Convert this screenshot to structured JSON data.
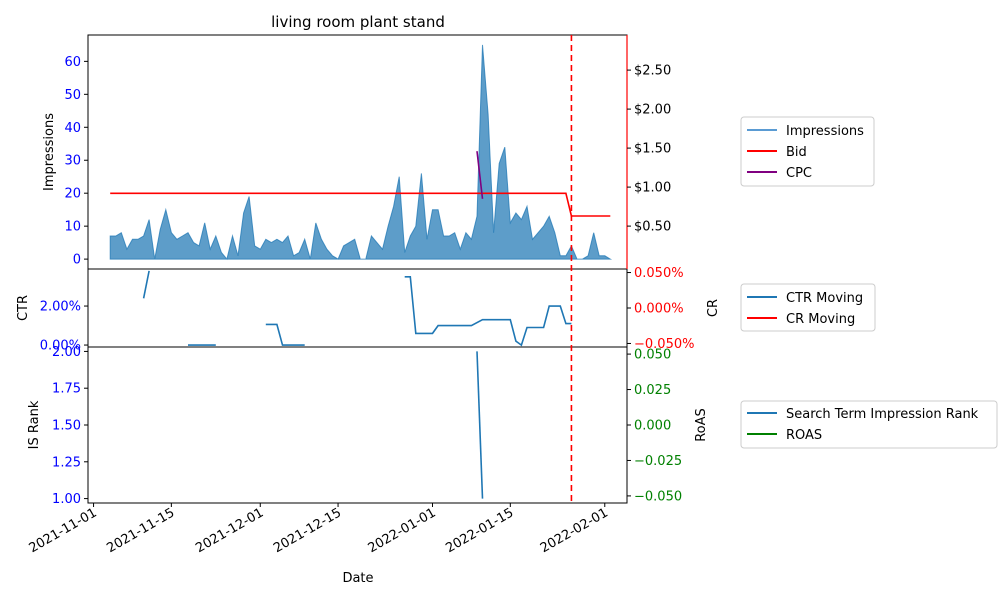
{
  "chart_data": [
    {
      "type": "area",
      "title": "living room plant stand",
      "ylabel": "Impressions",
      "ylim": [
        -3,
        68
      ],
      "y2lim": [
        -0.05,
        2.95
      ],
      "yticks": [
        "0",
        "10",
        "20",
        "30",
        "40",
        "50",
        "60"
      ],
      "y2ticks": [
        "$0.50",
        "$1.00",
        "$1.50",
        "$2.00",
        "$2.50"
      ],
      "colors": {
        "impressions": "#1f77b4",
        "bid": "#ff0000",
        "cpc": "#800080",
        "axis_left": "#0000ff",
        "axis_right": "#ff0000"
      },
      "legend": {
        "placement": "outside-right",
        "entries": [
          "Impressions",
          "Bid",
          "CPC"
        ]
      },
      "series": [
        {
          "name": "Impressions",
          "axis": "left",
          "points": [
            [
              "2021-11-04",
              7
            ],
            [
              "2021-11-05",
              7
            ],
            [
              "2021-11-06",
              8
            ],
            [
              "2021-11-07",
              3
            ],
            [
              "2021-11-08",
              6
            ],
            [
              "2021-11-09",
              6
            ],
            [
              "2021-11-10",
              7
            ],
            [
              "2021-11-11",
              12
            ],
            [
              "2021-11-12",
              0
            ],
            [
              "2021-11-13",
              9
            ],
            [
              "2021-11-14",
              15
            ],
            [
              "2021-11-15",
              8
            ],
            [
              "2021-11-16",
              6
            ],
            [
              "2021-11-17",
              7
            ],
            [
              "2021-11-18",
              8
            ],
            [
              "2021-11-19",
              5
            ],
            [
              "2021-11-20",
              4
            ],
            [
              "2021-11-21",
              11
            ],
            [
              "2021-11-22",
              3
            ],
            [
              "2021-11-23",
              7
            ],
            [
              "2021-11-24",
              2
            ],
            [
              "2021-11-25",
              0
            ],
            [
              "2021-11-26",
              7
            ],
            [
              "2021-11-27",
              1
            ],
            [
              "2021-11-28",
              14
            ],
            [
              "2021-11-29",
              19
            ],
            [
              "2021-11-30",
              4
            ],
            [
              "2021-12-01",
              3
            ],
            [
              "2021-12-02",
              6
            ],
            [
              "2021-12-03",
              5
            ],
            [
              "2021-12-04",
              6
            ],
            [
              "2021-12-05",
              5
            ],
            [
              "2021-12-06",
              7
            ],
            [
              "2021-12-07",
              1
            ],
            [
              "2021-12-08",
              2
            ],
            [
              "2021-12-09",
              6
            ],
            [
              "2021-12-10",
              0
            ],
            [
              "2021-12-11",
              11
            ],
            [
              "2021-12-12",
              6
            ],
            [
              "2021-12-13",
              3
            ],
            [
              "2021-12-14",
              1
            ],
            [
              "2021-12-15",
              0
            ],
            [
              "2021-12-16",
              4
            ],
            [
              "2021-12-17",
              5
            ],
            [
              "2021-12-18",
              6
            ],
            [
              "2021-12-19",
              0
            ],
            [
              "2021-12-20",
              0
            ],
            [
              "2021-12-21",
              7
            ],
            [
              "2021-12-22",
              5
            ],
            [
              "2021-12-23",
              3
            ],
            [
              "2021-12-24",
              10
            ],
            [
              "2021-12-25",
              16
            ],
            [
              "2021-12-26",
              25
            ],
            [
              "2021-12-27",
              2
            ],
            [
              "2021-12-28",
              7
            ],
            [
              "2021-12-29",
              10
            ],
            [
              "2021-12-30",
              26
            ],
            [
              "2021-12-31",
              6
            ],
            [
              "2022-01-01",
              15
            ],
            [
              "2022-01-02",
              15
            ],
            [
              "2022-01-03",
              7
            ],
            [
              "2022-01-04",
              7
            ],
            [
              "2022-01-05",
              8
            ],
            [
              "2022-01-06",
              3
            ],
            [
              "2022-01-07",
              8
            ],
            [
              "2022-01-08",
              6
            ],
            [
              "2022-01-09",
              13
            ],
            [
              "2022-01-10",
              65
            ],
            [
              "2022-01-11",
              44
            ],
            [
              "2022-01-12",
              8
            ],
            [
              "2022-01-13",
              29
            ],
            [
              "2022-01-14",
              34
            ],
            [
              "2022-01-15",
              11
            ],
            [
              "2022-01-16",
              14
            ],
            [
              "2022-01-17",
              12
            ],
            [
              "2022-01-18",
              16
            ],
            [
              "2022-01-19",
              6
            ],
            [
              "2022-01-20",
              8
            ],
            [
              "2022-01-21",
              10
            ],
            [
              "2022-01-22",
              13
            ],
            [
              "2022-01-23",
              8
            ],
            [
              "2022-01-24",
              1
            ],
            [
              "2022-01-25",
              1
            ],
            [
              "2022-01-26",
              4
            ],
            [
              "2022-01-27",
              0
            ],
            [
              "2022-01-28",
              0
            ],
            [
              "2022-01-29",
              1
            ],
            [
              "2022-01-30",
              8
            ],
            [
              "2022-01-31",
              1
            ],
            [
              "2022-02-01",
              1
            ],
            [
              "2022-02-02",
              0
            ]
          ]
        },
        {
          "name": "Bid",
          "axis": "right",
          "points": [
            [
              "2021-11-04",
              0.92
            ],
            [
              "2022-01-25",
              0.92
            ],
            [
              "2022-01-26",
              0.63
            ],
            [
              "2022-02-02",
              0.63
            ]
          ]
        },
        {
          "name": "CPC",
          "axis": "right",
          "points": [
            [
              "2022-01-09",
              1.46
            ],
            [
              "2022-01-10",
              0.85
            ]
          ]
        }
      ],
      "markers": [
        {
          "type": "vline",
          "x": "2022-01-26",
          "style": "dashed",
          "color": "#ff0000"
        }
      ]
    },
    {
      "type": "line",
      "ylabel": "CTR",
      "y2label": "CR",
      "ylim": [
        -0.1,
        3.9
      ],
      "y2lim": [
        -0.055,
        0.055
      ],
      "yticks": [
        "0.00%",
        "2.00%"
      ],
      "y2ticks": [
        "−0.050%",
        "0.000%",
        "0.050%"
      ],
      "legend": {
        "placement": "outside-right",
        "entries": [
          "CTR Moving",
          "CR Moving"
        ]
      },
      "series": [
        {
          "name": "CTR Moving",
          "unit": "%",
          "segments": [
            [
              [
                "2021-11-10",
                2.4
              ],
              [
                "2021-11-11",
                3.8
              ]
            ],
            [
              [
                "2021-11-18",
                0
              ],
              [
                "2021-11-23",
                0
              ]
            ],
            [
              [
                "2021-12-02",
                1.06
              ],
              [
                "2021-12-04",
                1.06
              ],
              [
                "2021-12-05",
                0
              ],
              [
                "2021-12-09",
                0
              ]
            ],
            [
              [
                "2021-12-27",
                3.5
              ],
              [
                "2021-12-28",
                3.5
              ],
              [
                "2021-12-29",
                0.6
              ],
              [
                "2022-01-01",
                0.6
              ],
              [
                "2022-01-02",
                1.0
              ],
              [
                "2022-01-08",
                1.0
              ],
              [
                "2022-01-10",
                1.3
              ],
              [
                "2022-01-15",
                1.3
              ],
              [
                "2022-01-16",
                0.2
              ],
              [
                "2022-01-17",
                0
              ],
              [
                "2022-01-18",
                0.9
              ],
              [
                "2022-01-21",
                0.9
              ],
              [
                "2022-01-22",
                2.0
              ],
              [
                "2022-01-24",
                2.0
              ],
              [
                "2022-01-25",
                1.1
              ],
              [
                "2022-01-26",
                1.1
              ]
            ]
          ]
        },
        {
          "name": "CR Moving",
          "unit": "%",
          "segments": []
        }
      ],
      "markers": [
        {
          "type": "vline",
          "x": "2022-01-26",
          "style": "dashed",
          "color": "#ff0000"
        }
      ]
    },
    {
      "type": "line",
      "ylabel": "IS Rank",
      "y2label": "RoAS",
      "xlabel": "Date",
      "ylim": [
        0.97,
        2.03
      ],
      "y2lim": [
        -0.055,
        0.055
      ],
      "yticks": [
        "1.00",
        "1.25",
        "1.50",
        "1.75",
        "2.00"
      ],
      "y2ticks": [
        "−0.050",
        "−0.025",
        "0.000",
        "0.025",
        "0.050"
      ],
      "xticks": [
        "2021-11-01",
        "2021-11-15",
        "2021-12-01",
        "2021-12-15",
        "2022-01-01",
        "2022-01-15",
        "2022-02-01"
      ],
      "legend": {
        "placement": "outside-right",
        "entries": [
          "Search Term Impression Rank",
          "ROAS"
        ]
      },
      "series": [
        {
          "name": "Search Term Impression Rank",
          "segments": [
            [
              [
                "2022-01-09",
                2.0
              ],
              [
                "2022-01-10",
                1.0
              ]
            ]
          ]
        },
        {
          "name": "ROAS",
          "segments": []
        }
      ],
      "markers": [
        {
          "type": "vline",
          "x": "2022-01-26",
          "style": "dashed",
          "color": "#ff0000"
        }
      ]
    }
  ],
  "legend_colors": {
    "Impressions": "#5a9bd3",
    "Bid": "#ff0000",
    "CPC": "#800080",
    "CTR Moving": "#1f77b4",
    "CR Moving": "#ff0000",
    "Search Term Impression Rank": "#1f77b4",
    "ROAS": "#008000"
  },
  "x_axis": {
    "start": "2021-10-31",
    "end": "2022-02-05"
  }
}
